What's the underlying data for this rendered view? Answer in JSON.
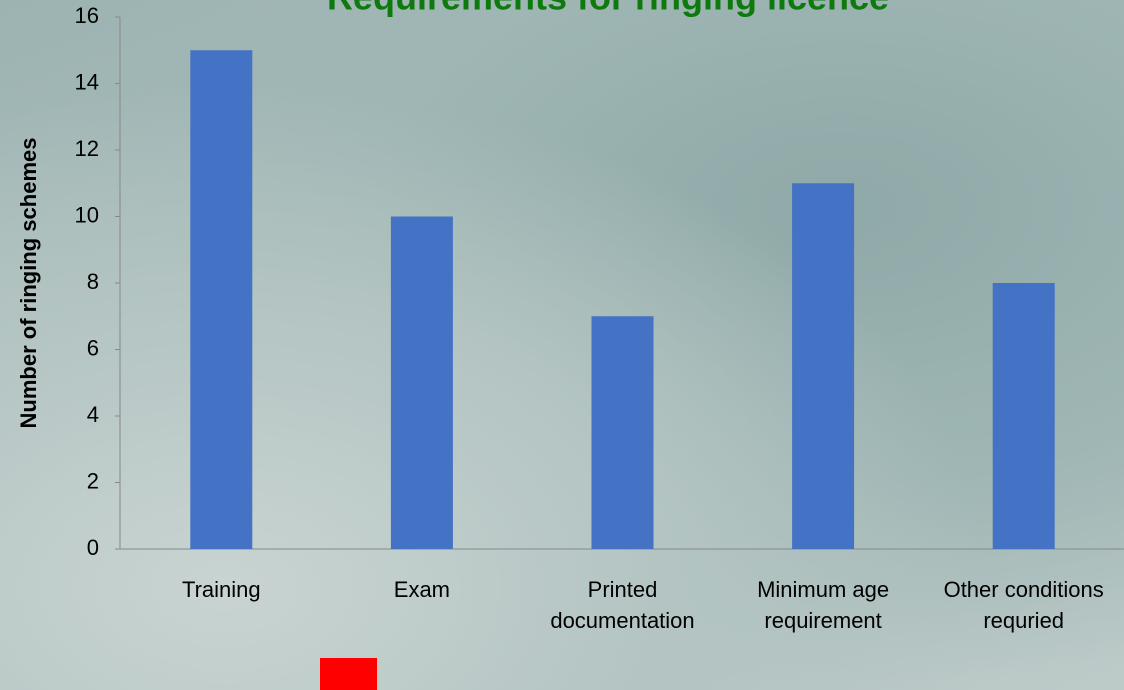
{
  "chart_data": {
    "type": "bar",
    "title": "Requirements for ringing licence",
    "y_label": "Number of ringing schemes",
    "categories": [
      "Training",
      "Exam",
      "Printed documentation",
      "Minimum age requirement",
      "Other conditions requried"
    ],
    "values": [
      15,
      10,
      7,
      11,
      8
    ],
    "color": "#4472c4",
    "title_color": "#0e7a0e",
    "ylim": [
      0,
      16
    ],
    "yticks": [
      0,
      2,
      4,
      6,
      8,
      10,
      12,
      14,
      16
    ],
    "grid": false
  }
}
